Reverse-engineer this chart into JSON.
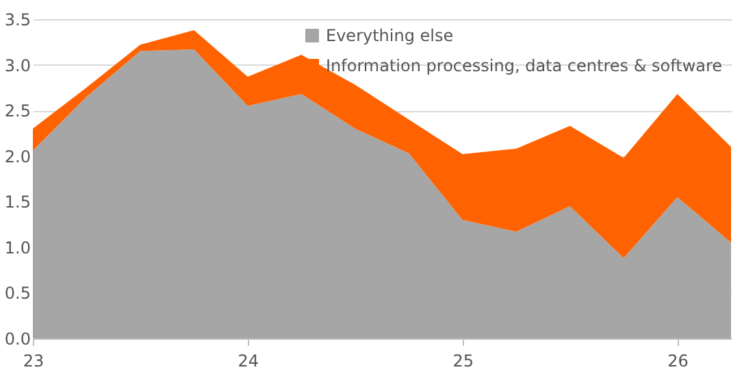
{
  "chart_data": {
    "type": "area",
    "stacked": true,
    "x": [
      23,
      23.25,
      23.5,
      23.75,
      24,
      24.25,
      24.5,
      24.75,
      25,
      25.25,
      25.5,
      25.75,
      26,
      26.25
    ],
    "series": [
      {
        "name": "Everything else",
        "color": "#a6a6a6",
        "values": [
          2.06,
          2.65,
          3.15,
          3.17,
          2.55,
          2.68,
          2.3,
          2.03,
          1.3,
          1.17,
          1.45,
          0.88,
          1.55,
          1.05
        ]
      },
      {
        "name": "Information processing, data centres & software",
        "color": "#ff6200",
        "values": [
          0.24,
          0.1,
          0.07,
          0.21,
          0.32,
          0.43,
          0.48,
          0.37,
          0.72,
          0.91,
          0.88,
          1.1,
          1.13,
          1.05
        ]
      }
    ],
    "xlim": [
      23,
      26.25
    ],
    "xticks": [
      23,
      24,
      25,
      26
    ],
    "ylim": [
      0,
      3.5
    ],
    "yticks": [
      {
        "value": 0,
        "label": "0.0"
      },
      {
        "value": 0.5,
        "label": "0.5"
      },
      {
        "value": 1,
        "label": "1.0"
      },
      {
        "value": 1.5,
        "label": "1.5"
      },
      {
        "value": 2,
        "label": "2.0"
      },
      {
        "value": 2.5,
        "label": "2.5"
      },
      {
        "value": 3,
        "label": "3.0"
      },
      {
        "value": 3.5,
        "label": "3.5"
      }
    ],
    "grid": "y",
    "legend": "top right"
  }
}
